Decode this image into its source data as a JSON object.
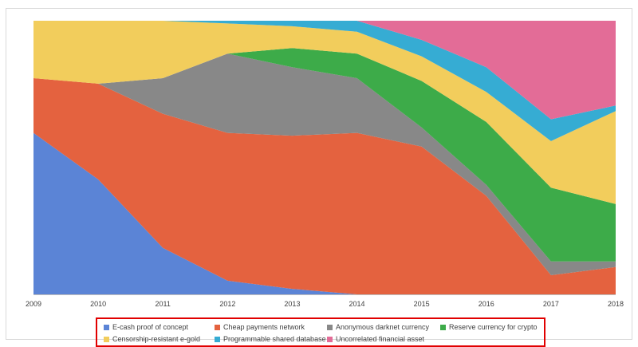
{
  "chart_data": {
    "type": "area",
    "stacked": true,
    "normalized": true,
    "x": [
      "2009",
      "2010",
      "2011",
      "2012",
      "2013",
      "2014",
      "2015",
      "2016",
      "2017",
      "2018"
    ],
    "series": [
      {
        "name": "E-cash proof of concept",
        "color": "#5b84d6",
        "values": [
          0.59,
          0.42,
          0.17,
          0.05,
          0.02,
          0.0,
          0.0,
          0.0,
          0.0,
          0.0
        ]
      },
      {
        "name": "Cheap payments network",
        "color": "#e4623f",
        "values": [
          0.2,
          0.35,
          0.49,
          0.54,
          0.56,
          0.59,
          0.54,
          0.36,
          0.07,
          0.1
        ]
      },
      {
        "name": "Anonymous darknet currency",
        "color": "#888888",
        "values": [
          0.0,
          0.0,
          0.13,
          0.29,
          0.25,
          0.2,
          0.07,
          0.04,
          0.05,
          0.02
        ]
      },
      {
        "name": "Reserve currency for crypto",
        "color": "#3dab49",
        "values": [
          0.0,
          0.0,
          0.0,
          0.0,
          0.07,
          0.09,
          0.17,
          0.23,
          0.27,
          0.21
        ]
      },
      {
        "name": "Censorship-resistant e-gold",
        "color": "#f2cd5c",
        "values": [
          0.21,
          0.23,
          0.21,
          0.11,
          0.08,
          0.08,
          0.09,
          0.11,
          0.17,
          0.34
        ]
      },
      {
        "name": "Programmable shared database",
        "color": "#36acd3",
        "values": [
          0.0,
          0.0,
          0.0,
          0.01,
          0.02,
          0.04,
          0.06,
          0.09,
          0.08,
          0.02
        ]
      },
      {
        "name": "Uncorrelated financial asset",
        "color": "#e36c97",
        "values": [
          0.0,
          0.0,
          0.0,
          0.0,
          0.0,
          0.0,
          0.07,
          0.17,
          0.36,
          0.31
        ]
      }
    ],
    "title": "",
    "xlabel": "",
    "ylabel": "",
    "ylim": [
      0,
      1
    ],
    "grid": false,
    "legend_position": "bottom"
  }
}
